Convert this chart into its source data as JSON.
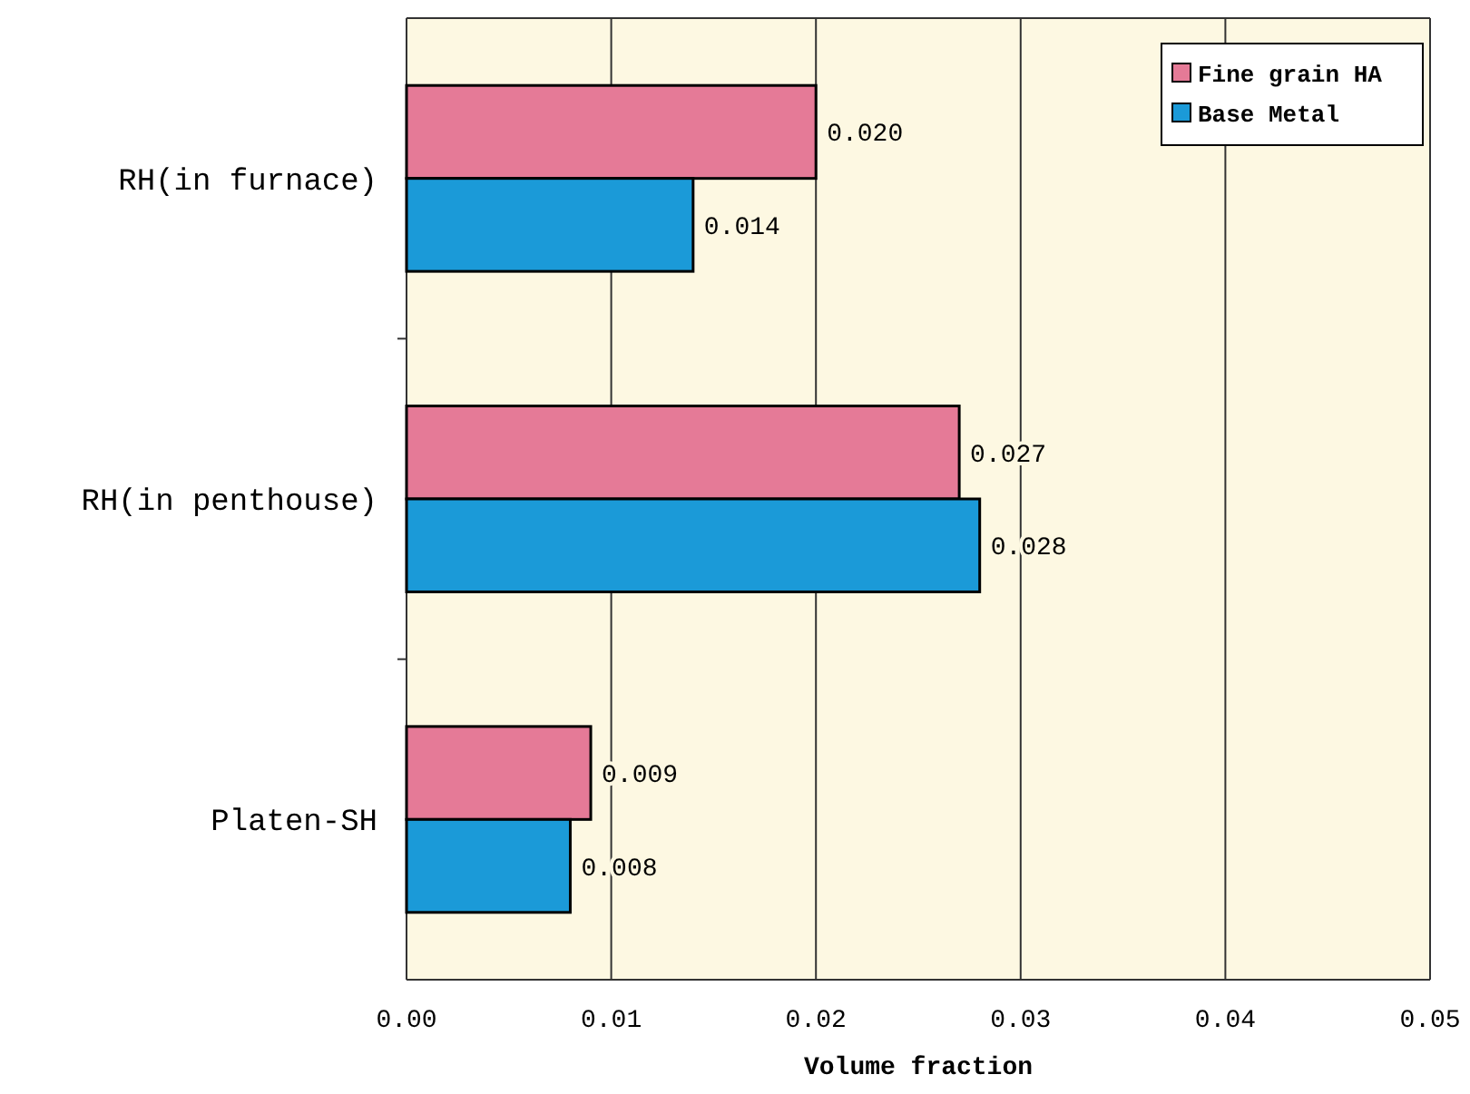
{
  "chart_data": {
    "type": "bar",
    "orientation": "horizontal",
    "xlabel": "Volume fraction",
    "categories": [
      "RH(in furnace)",
      "RH(in penthouse)",
      "Platen-SH"
    ],
    "series": [
      {
        "name": "Fine grain HA",
        "color": "#e57a97",
        "values": [
          0.02,
          0.027,
          0.009
        ]
      },
      {
        "name": "Base Metal",
        "color": "#1b9ad8",
        "values": [
          0.014,
          0.028,
          0.008
        ]
      }
    ],
    "xlim": [
      0,
      0.05
    ],
    "xticks": [
      {
        "value": 0,
        "label": "0.00"
      },
      {
        "value": 0.01,
        "label": "0.01"
      },
      {
        "value": 0.02,
        "label": "0.02"
      },
      {
        "value": 0.03,
        "label": "0.03"
      },
      {
        "value": 0.04,
        "label": "0.04"
      },
      {
        "value": 0.05,
        "label": "0.05"
      }
    ],
    "value_labels": [
      [
        "0.020",
        "0.027",
        "0.009"
      ],
      [
        "0.014",
        "0.028",
        "0.008"
      ]
    ],
    "grid": "x",
    "legend": "top right"
  }
}
